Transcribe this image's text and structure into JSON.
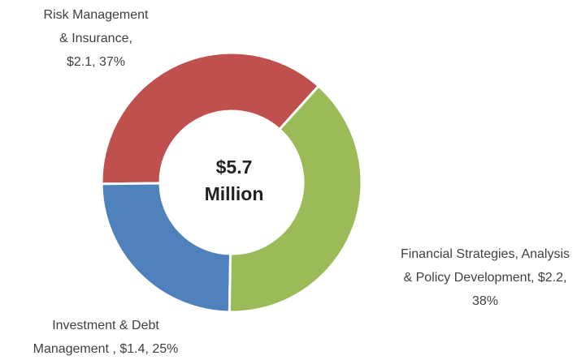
{
  "chart_data": {
    "type": "donut",
    "categories": [
      "Financial Strategies, Analysis & Policy Development",
      "Investment & Debt Management",
      "Risk Management & Insurance"
    ],
    "values": [
      2.2,
      1.4,
      2.1
    ],
    "percents": [
      38,
      25,
      37
    ],
    "labels": [
      [
        "Financial Strategies, Analysis",
        "& Policy Development, $2.2,",
        "38%"
      ],
      [
        "Investment & Debt",
        "Management , $1.4, 25%"
      ],
      [
        "Risk Management",
        "& Insurance,",
        "$2.1, 37%"
      ]
    ],
    "colors": [
      "#9bbb59",
      "#4f81bd",
      "#c0504d"
    ],
    "center_label": [
      "$5.7",
      "Million"
    ],
    "start_angle": 42
  }
}
